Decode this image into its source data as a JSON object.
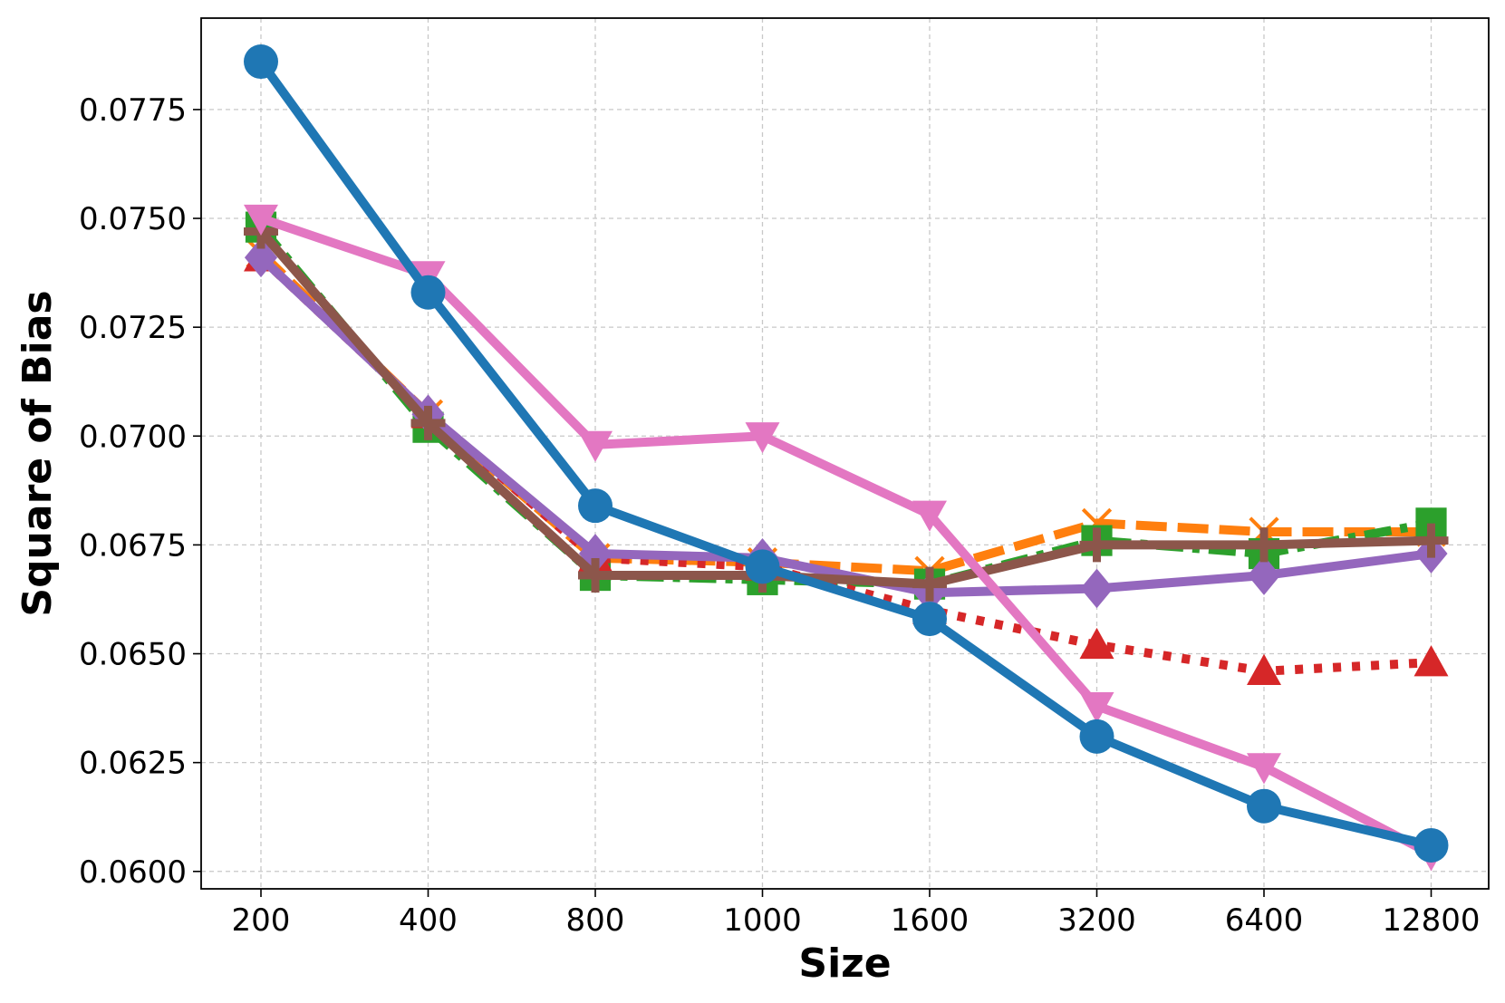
{
  "chart_data": {
    "type": "line",
    "xlabel": "Size",
    "ylabel": "Square of Bias",
    "categories": [
      "200",
      "400",
      "800",
      "1000",
      "1600",
      "3200",
      "6400",
      "12800"
    ],
    "ylim": [
      0.0596,
      0.0796
    ],
    "yticks": [
      "0.0600",
      "0.0625",
      "0.0650",
      "0.0675",
      "0.0700",
      "0.0725",
      "0.0750",
      "0.0775"
    ],
    "grid": true,
    "series": [
      {
        "color": "#ff7f0e",
        "marker": "x",
        "linestyle": "dashed",
        "values": [
          0.0742,
          0.0705,
          0.0672,
          0.0671,
          0.0669,
          0.068,
          0.0678,
          0.0678
        ]
      },
      {
        "color": "#2ca02c",
        "marker": "square",
        "linestyle": "dashdot",
        "values": [
          0.0748,
          0.0702,
          0.0668,
          0.0667,
          0.0666,
          0.0676,
          0.0673,
          0.068
        ]
      },
      {
        "color": "#d62728",
        "marker": "triangle-up",
        "linestyle": "dotted",
        "values": [
          0.0741,
          0.0705,
          0.0672,
          0.067,
          0.066,
          0.0652,
          0.0646,
          0.0648
        ]
      },
      {
        "color": "#9467bd",
        "marker": "diamond",
        "linestyle": "solid",
        "values": [
          0.0741,
          0.0705,
          0.0673,
          0.0672,
          0.0664,
          0.0665,
          0.0668,
          0.0673
        ]
      },
      {
        "color": "#8c564b",
        "marker": "plus",
        "linestyle": "solid",
        "values": [
          0.0747,
          0.0703,
          0.0668,
          0.0668,
          0.0666,
          0.0675,
          0.0675,
          0.0676
        ]
      },
      {
        "color": "#e377c2",
        "marker": "triangle-down",
        "linestyle": "solid",
        "values": [
          0.075,
          0.0737,
          0.0698,
          0.07,
          0.0682,
          0.0638,
          0.0624,
          0.0604
        ]
      },
      {
        "color": "#1f77b4",
        "marker": "circle",
        "linestyle": "solid",
        "values": [
          0.0786,
          0.0733,
          0.0684,
          0.067,
          0.0658,
          0.0631,
          0.0615,
          0.0606
        ]
      }
    ]
  }
}
